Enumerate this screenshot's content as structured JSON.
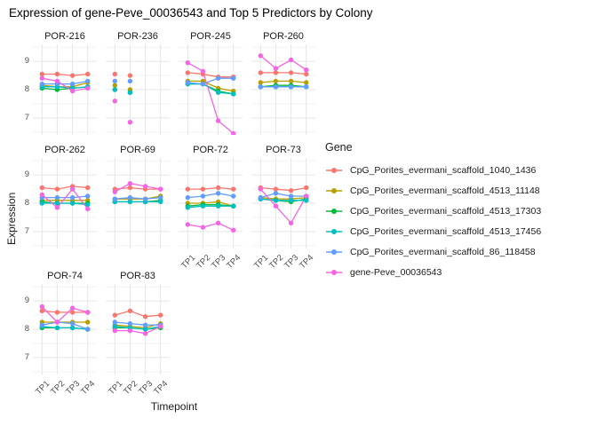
{
  "title": "Expression of gene-Peve_00036543 and Top 5 Predictors by Colony",
  "chart_data": {
    "type": "line",
    "title": "Expression of gene-Peve_00036543 and Top 5 Predictors by Colony",
    "xlabel": "Timepoint",
    "ylabel": "Expression",
    "x_categories": [
      "TP1",
      "TP2",
      "TP3",
      "TP4"
    ],
    "y_ticks": [
      9,
      8,
      7
    ],
    "y_minor": [
      9.5,
      8.5,
      7.5,
      6.5
    ],
    "ylim": [
      6.4,
      9.6
    ],
    "grid": true,
    "legend_title": "Gene",
    "legend_position": "right",
    "panel_bg": "#ffffff",
    "grid_major": "#e5e5e5",
    "grid_minor": "#f2f2f2",
    "series": [
      {
        "name": "CpG_Porites_evermani_scaffold_1040_1436",
        "color": "#F8766D"
      },
      {
        "name": "CpG_Porites_evermani_scaffold_4513_11148",
        "color": "#B79F00"
      },
      {
        "name": "CpG_Porites_evermani_scaffold_4513_17303",
        "color": "#00BA38"
      },
      {
        "name": "CpG_Porites_evermani_scaffold_4513_17456",
        "color": "#00BFC4"
      },
      {
        "name": "CpG_Porites_evermani_scaffold_86_118458",
        "color": "#619CFF"
      },
      {
        "name": "gene-Peve_00036543",
        "color": "#F564E3"
      }
    ],
    "facets": [
      {
        "label": "POR-216",
        "row": 0,
        "col": 0,
        "y_axis": true,
        "x_axis": false,
        "draw_lines": true,
        "values": [
          [
            8.55,
            8.55,
            8.5,
            8.55
          ],
          [
            8.15,
            8.1,
            8.1,
            8.25
          ],
          [
            8.05,
            8.0,
            8.05,
            8.1
          ],
          [
            8.1,
            8.1,
            8.05,
            8.1
          ],
          [
            8.2,
            8.2,
            8.2,
            8.3
          ],
          [
            8.4,
            8.3,
            7.95,
            8.05
          ]
        ]
      },
      {
        "label": "POR-236",
        "row": 0,
        "col": 1,
        "y_axis": false,
        "x_axis": false,
        "draw_lines": false,
        "values": [
          [
            8.55,
            8.5,
            null,
            null
          ],
          [
            8.15,
            8.0,
            null,
            null
          ],
          [
            8.0,
            7.9,
            null,
            null
          ],
          [
            8.0,
            7.9,
            null,
            null
          ],
          [
            8.3,
            8.3,
            null,
            null
          ],
          [
            7.6,
            6.85,
            null,
            null
          ]
        ]
      },
      {
        "label": "POR-245",
        "row": 0,
        "col": 2,
        "y_axis": false,
        "x_axis": false,
        "draw_lines": true,
        "values": [
          [
            8.6,
            8.55,
            8.45,
            8.45
          ],
          [
            8.3,
            8.3,
            8.05,
            7.95
          ],
          [
            8.2,
            8.2,
            7.95,
            7.85
          ],
          [
            8.2,
            8.2,
            7.9,
            7.85
          ],
          [
            8.25,
            8.2,
            8.4,
            8.4
          ],
          [
            8.95,
            8.65,
            6.9,
            6.45
          ]
        ]
      },
      {
        "label": "POR-260",
        "row": 0,
        "col": 3,
        "y_axis": false,
        "x_axis": false,
        "draw_lines": true,
        "values": [
          [
            8.6,
            8.6,
            8.6,
            8.55
          ],
          [
            8.25,
            8.3,
            8.3,
            8.25
          ],
          [
            8.1,
            8.15,
            8.15,
            8.1
          ],
          [
            8.1,
            8.1,
            8.1,
            8.1
          ],
          [
            8.1,
            8.1,
            8.1,
            8.1
          ],
          [
            9.2,
            8.75,
            9.05,
            8.7
          ]
        ]
      },
      {
        "label": "POR-262",
        "row": 1,
        "col": 0,
        "y_axis": true,
        "x_axis": false,
        "draw_lines": true,
        "values": [
          [
            8.55,
            8.5,
            8.6,
            8.55
          ],
          [
            8.1,
            8.1,
            8.1,
            8.1
          ],
          [
            8.05,
            8.0,
            8.0,
            8.0
          ],
          [
            8.0,
            8.0,
            8.0,
            7.95
          ],
          [
            8.2,
            8.2,
            8.2,
            8.25
          ],
          [
            8.3,
            7.85,
            8.5,
            7.8
          ]
        ]
      },
      {
        "label": "POR-69",
        "row": 1,
        "col": 1,
        "y_axis": false,
        "x_axis": false,
        "draw_lines": true,
        "values": [
          [
            8.5,
            8.55,
            8.5,
            8.5
          ],
          [
            8.15,
            8.15,
            8.15,
            8.25
          ],
          [
            8.05,
            8.05,
            8.05,
            8.1
          ],
          [
            8.05,
            8.05,
            8.05,
            8.05
          ],
          [
            8.15,
            8.2,
            8.15,
            8.2
          ],
          [
            8.4,
            8.7,
            8.6,
            8.5
          ]
        ]
      },
      {
        "label": "POR-72",
        "row": 1,
        "col": 2,
        "y_axis": false,
        "x_axis": true,
        "draw_lines": true,
        "values": [
          [
            8.5,
            8.5,
            8.55,
            8.5
          ],
          [
            8.0,
            8.0,
            8.05,
            7.9
          ],
          [
            7.9,
            7.95,
            7.95,
            7.9
          ],
          [
            7.85,
            7.9,
            7.9,
            7.9
          ],
          [
            8.2,
            8.25,
            8.35,
            8.25
          ],
          [
            7.25,
            7.15,
            7.3,
            7.05
          ]
        ]
      },
      {
        "label": "POR-73",
        "row": 1,
        "col": 3,
        "y_axis": false,
        "x_axis": true,
        "draw_lines": true,
        "values": [
          [
            8.55,
            8.5,
            8.45,
            8.55
          ],
          [
            8.2,
            8.15,
            8.15,
            8.2
          ],
          [
            8.15,
            8.1,
            8.05,
            8.15
          ],
          [
            8.15,
            8.1,
            8.1,
            8.1
          ],
          [
            8.2,
            8.35,
            8.25,
            8.25
          ],
          [
            8.5,
            7.9,
            7.3,
            8.25
          ]
        ]
      },
      {
        "label": "POR-74",
        "row": 2,
        "col": 0,
        "y_axis": true,
        "x_axis": true,
        "draw_lines": true,
        "values": [
          [
            8.65,
            8.6,
            8.6,
            8.6
          ],
          [
            8.25,
            8.25,
            8.25,
            8.25
          ],
          [
            8.05,
            8.05,
            8.05,
            8.0
          ],
          [
            8.1,
            8.05,
            8.05,
            8.0
          ],
          [
            8.15,
            8.25,
            8.2,
            8.0
          ],
          [
            8.8,
            8.25,
            8.75,
            8.6
          ]
        ]
      },
      {
        "label": "POR-83",
        "row": 2,
        "col": 1,
        "y_axis": false,
        "x_axis": true,
        "draw_lines": true,
        "values": [
          [
            8.5,
            8.65,
            8.45,
            8.5
          ],
          [
            8.15,
            8.1,
            8.05,
            8.2
          ],
          [
            8.05,
            8.05,
            8.0,
            8.05
          ],
          [
            8.1,
            8.05,
            8.0,
            8.1
          ],
          [
            8.25,
            8.2,
            8.15,
            8.15
          ],
          [
            7.95,
            7.95,
            7.85,
            8.1
          ]
        ]
      }
    ]
  }
}
